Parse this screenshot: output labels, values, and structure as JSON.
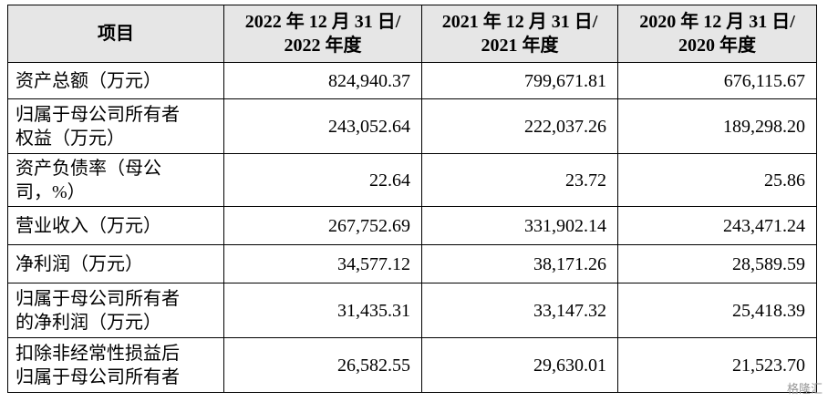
{
  "table": {
    "header": [
      "项目",
      [
        "2022 年 12 月 31 日/",
        "2022 年度"
      ],
      [
        "2021 年 12 月 31 日/",
        "2021 年度"
      ],
      [
        "2020 年 12 月 31 日/",
        "2020 年度"
      ]
    ],
    "rows": [
      [
        [
          "资产总额（万元）"
        ],
        "824,940.37",
        "799,671.81",
        "676,115.67"
      ],
      [
        [
          "归属于母公司所有者",
          "权益（万元）"
        ],
        "243,052.64",
        "222,037.26",
        "189,298.20"
      ],
      [
        [
          "资产负债率（母公",
          "司，%）"
        ],
        "22.64",
        "23.72",
        "25.86"
      ],
      [
        [
          "营业收入（万元）"
        ],
        "267,752.69",
        "331,902.14",
        "243,471.24"
      ],
      [
        [
          "净利润（万元）"
        ],
        "34,577.12",
        "38,171.26",
        "28,589.59"
      ],
      [
        [
          "归属于母公司所有者",
          "的净利润（万元）"
        ],
        "31,435.31",
        "33,147.32",
        "25,418.39"
      ],
      [
        [
          "扣除非经常性损益后",
          "归属于母公司所有者"
        ],
        "26,582.55",
        "29,630.01",
        "21,523.70"
      ]
    ]
  },
  "watermark": "格隆汇"
}
